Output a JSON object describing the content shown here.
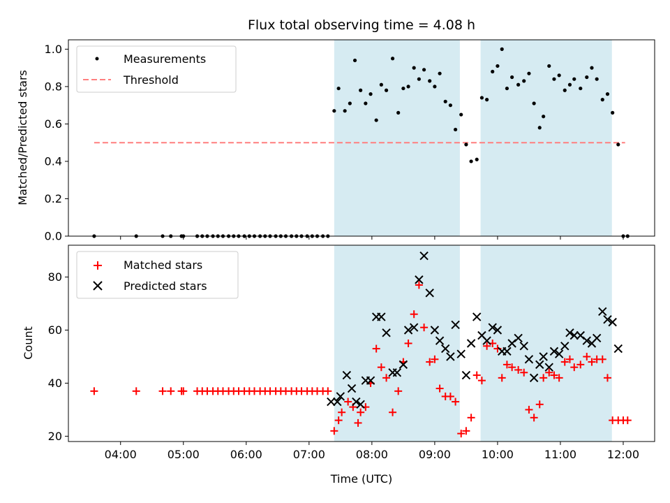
{
  "figure": {
    "title": "Flux total observing time = 4.08 h",
    "xlabel": "Time (UTC)"
  },
  "colors": {
    "shade": "#add8e6",
    "threshold": "#ff7f7f",
    "measurements": "#000000",
    "matched": "#ff0000",
    "predicted": "#000000"
  },
  "chart_data": [
    {
      "type": "scatter",
      "title": "Flux total observing time = 4.08 h",
      "xlabel": "",
      "ylabel": "Matched/Predicted stars",
      "x_unit": "hours UTC",
      "xlim": [
        3.17,
        12.5
      ],
      "ylim": [
        0,
        1.05
      ],
      "y_ticks": [
        "0.0",
        "0.2",
        "0.4",
        "0.6",
        "0.8",
        "1.0"
      ],
      "grid": false,
      "legend": "top-left",
      "shaded_intervals": [
        [
          7.4,
          9.4
        ],
        [
          9.73,
          11.82
        ]
      ],
      "threshold": {
        "name": "Threshold",
        "y": 0.5,
        "x_range": [
          3.58,
          12.03
        ]
      },
      "series": [
        {
          "name": "Measurements",
          "x": [
            3.58,
            4.25,
            4.67,
            4.8,
            4.97,
            5.0,
            5.22,
            5.3,
            5.38,
            5.47,
            5.55,
            5.63,
            5.72,
            5.8,
            5.88,
            5.97,
            6.05,
            6.13,
            6.22,
            6.3,
            6.38,
            6.47,
            6.55,
            6.63,
            6.72,
            6.8,
            6.88,
            6.97,
            7.05,
            7.13,
            7.22,
            7.3,
            7.4,
            7.47,
            7.57,
            7.65,
            7.73,
            7.82,
            7.9,
            7.98,
            8.07,
            8.15,
            8.23,
            8.33,
            8.42,
            8.5,
            8.58,
            8.67,
            8.75,
            8.83,
            8.92,
            9.0,
            9.08,
            9.17,
            9.25,
            9.33,
            9.42,
            9.5,
            9.58,
            9.67,
            9.75,
            9.83,
            9.92,
            10.0,
            10.07,
            10.15,
            10.23,
            10.33,
            10.42,
            10.5,
            10.58,
            10.67,
            10.73,
            10.82,
            10.9,
            10.98,
            11.07,
            11.15,
            11.22,
            11.32,
            11.42,
            11.5,
            11.58,
            11.67,
            11.75,
            11.83,
            11.92,
            12.0,
            12.07
          ],
          "y": [
            0,
            0,
            0,
            0,
            0,
            0,
            0,
            0,
            0,
            0,
            0,
            0,
            0,
            0,
            0,
            0,
            0,
            0,
            0,
            0,
            0,
            0,
            0,
            0,
            0,
            0,
            0,
            0,
            0,
            0,
            0,
            0,
            0.67,
            0.79,
            0.67,
            0.71,
            0.94,
            0.78,
            0.71,
            0.76,
            0.62,
            0.81,
            0.78,
            0.95,
            0.66,
            0.79,
            0.8,
            0.9,
            0.84,
            0.89,
            0.83,
            0.8,
            0.87,
            0.72,
            0.7,
            0.57,
            0.65,
            0.49,
            0.4,
            0.41,
            0.74,
            0.73,
            0.88,
            0.91,
            1.0,
            0.79,
            0.85,
            0.81,
            0.83,
            0.87,
            0.71,
            0.58,
            0.64,
            0.91,
            0.84,
            0.86,
            0.78,
            0.81,
            0.84,
            0.79,
            0.85,
            0.9,
            0.84,
            0.73,
            0.76,
            0.66,
            0.49,
            0,
            0
          ]
        }
      ]
    },
    {
      "type": "scatter",
      "xlabel": "Time (UTC)",
      "ylabel": "Count",
      "x_unit": "hours UTC",
      "xlim": [
        3.17,
        12.5
      ],
      "ylim": [
        18,
        92
      ],
      "x_ticks": [
        "04:00",
        "05:00",
        "06:00",
        "07:00",
        "08:00",
        "09:00",
        "10:00",
        "11:00",
        "12:00"
      ],
      "x_tick_values": [
        4,
        5,
        6,
        7,
        8,
        9,
        10,
        11,
        12
      ],
      "y_ticks": [
        "20",
        "40",
        "60",
        "80"
      ],
      "grid": false,
      "legend": "top-left",
      "shaded_intervals": [
        [
          7.4,
          9.4
        ],
        [
          9.73,
          11.82
        ]
      ],
      "series": [
        {
          "name": "Matched stars",
          "marker": "plus",
          "x": [
            3.58,
            4.25,
            4.67,
            4.8,
            4.97,
            5.0,
            5.22,
            5.3,
            5.38,
            5.47,
            5.55,
            5.63,
            5.72,
            5.8,
            5.88,
            5.97,
            6.05,
            6.13,
            6.22,
            6.3,
            6.38,
            6.47,
            6.55,
            6.63,
            6.72,
            6.8,
            6.88,
            6.97,
            7.05,
            7.13,
            7.22,
            7.3,
            7.4,
            7.47,
            7.52,
            7.62,
            7.7,
            7.78,
            7.82,
            7.9,
            7.98,
            8.07,
            8.15,
            8.23,
            8.33,
            8.42,
            8.5,
            8.58,
            8.67,
            8.75,
            8.83,
            8.92,
            9.0,
            9.08,
            9.17,
            9.25,
            9.33,
            9.42,
            9.5,
            9.58,
            9.67,
            9.75,
            9.83,
            9.92,
            10.0,
            10.07,
            10.15,
            10.23,
            10.33,
            10.42,
            10.5,
            10.58,
            10.67,
            10.73,
            10.82,
            10.9,
            10.98,
            11.07,
            11.15,
            11.22,
            11.32,
            11.42,
            11.5,
            11.58,
            11.67,
            11.75,
            11.83,
            11.92,
            12.0,
            12.07
          ],
          "y": [
            37,
            37,
            37,
            37,
            37,
            37,
            37,
            37,
            37,
            37,
            37,
            37,
            37,
            37,
            37,
            37,
            37,
            37,
            37,
            37,
            37,
            37,
            37,
            37,
            37,
            37,
            37,
            37,
            37,
            37,
            37,
            37,
            22,
            26,
            29,
            33,
            31,
            25,
            29,
            31,
            40,
            53,
            46,
            42,
            29,
            37,
            48,
            55,
            66,
            77,
            61,
            48,
            49,
            38,
            35,
            35,
            33,
            21,
            22,
            27,
            43,
            41,
            54,
            55,
            53,
            42,
            47,
            46,
            45,
            44,
            30,
            27,
            32,
            42,
            44,
            43,
            42,
            48,
            49,
            46,
            47,
            50,
            48,
            49,
            49,
            42,
            26,
            26,
            26,
            26
          ]
        },
        {
          "name": "Predicted stars",
          "marker": "x",
          "x": [
            7.35,
            7.45,
            7.5,
            7.6,
            7.68,
            7.75,
            7.82,
            7.9,
            7.98,
            8.07,
            8.15,
            8.23,
            8.33,
            8.4,
            8.5,
            8.58,
            8.67,
            8.75,
            8.83,
            8.92,
            9.0,
            9.08,
            9.17,
            9.25,
            9.33,
            9.42,
            9.5,
            9.58,
            9.67,
            9.75,
            9.83,
            9.92,
            10.0,
            10.07,
            10.15,
            10.23,
            10.33,
            10.42,
            10.5,
            10.58,
            10.67,
            10.73,
            10.82,
            10.9,
            10.98,
            11.07,
            11.15,
            11.22,
            11.32,
            11.42,
            11.5,
            11.58,
            11.67,
            11.75,
            11.83,
            11.92
          ],
          "y": [
            33,
            33,
            35,
            43,
            38,
            33,
            32,
            41,
            41,
            65,
            65,
            59,
            44,
            44,
            47,
            60,
            61,
            79,
            88,
            74,
            60,
            56,
            53,
            50,
            62,
            51,
            43,
            55,
            65,
            58,
            56,
            61,
            60,
            52,
            52,
            55,
            57,
            54,
            49,
            42,
            47,
            50,
            46,
            52,
            51,
            54,
            59,
            58,
            58,
            56,
            55,
            57,
            67,
            64,
            63,
            53
          ]
        }
      ]
    }
  ]
}
